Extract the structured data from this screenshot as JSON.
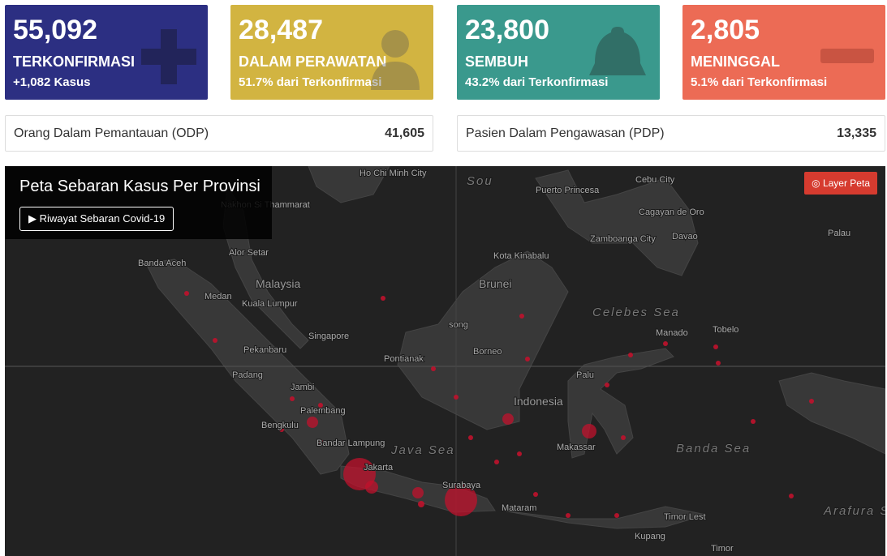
{
  "cards": [
    {
      "value": "55,092",
      "label": "TERKONFIRMASI",
      "sub": "+1,082 Kasus"
    },
    {
      "value": "28,487",
      "label": "DALAM PERAWATAN",
      "sub": "51.7% dari Terkonfirmasi"
    },
    {
      "value": "23,800",
      "label": "SEMBUH",
      "sub": "43.2% dari Terkonfirmasi"
    },
    {
      "value": "2,805",
      "label": "MENINGGAL",
      "sub": "5.1% dari Terkonfirmasi"
    }
  ],
  "info": [
    {
      "label": "Orang Dalam Pemantauan (ODP)",
      "value": "41,605"
    },
    {
      "label": "Pasien Dalam Pengawasan (PDP)",
      "value": "13,335"
    }
  ],
  "map": {
    "title": "Peta Sebaran Kasus Per Provinsi",
    "history_button": "Riwayat Sebaran Covid-19",
    "layer_button": "Layer Peta",
    "labels": [
      "Ho Chi Minh City",
      "Nakhon Si Thammarat",
      "Puerto Princesa",
      "Cebu City",
      "Cagayan de Oro",
      "Zamboanga City",
      "Davao",
      "Palau",
      "Banda Aceh",
      "Alor Setar",
      "Malaysia",
      "Kota Kinabalu",
      "Brunei",
      "Medan",
      "Kuala Lumpur",
      "Celebes Sea",
      "Singapore",
      "song",
      "Manado",
      "Tobelo",
      "Pekanbaru",
      "Pontianak",
      "Borneo",
      "Padang",
      "Palu",
      "Jambi",
      "Indonesia",
      "Palembang",
      "Bengkulu",
      "Bandar Lampung",
      "Java Sea",
      "Makassar",
      "Banda Sea",
      "Jakarta",
      "Surabaya",
      "Mataram",
      "Timor Lest",
      "Arafura Sea",
      "Kupang",
      "Timor",
      "Sou"
    ]
  }
}
